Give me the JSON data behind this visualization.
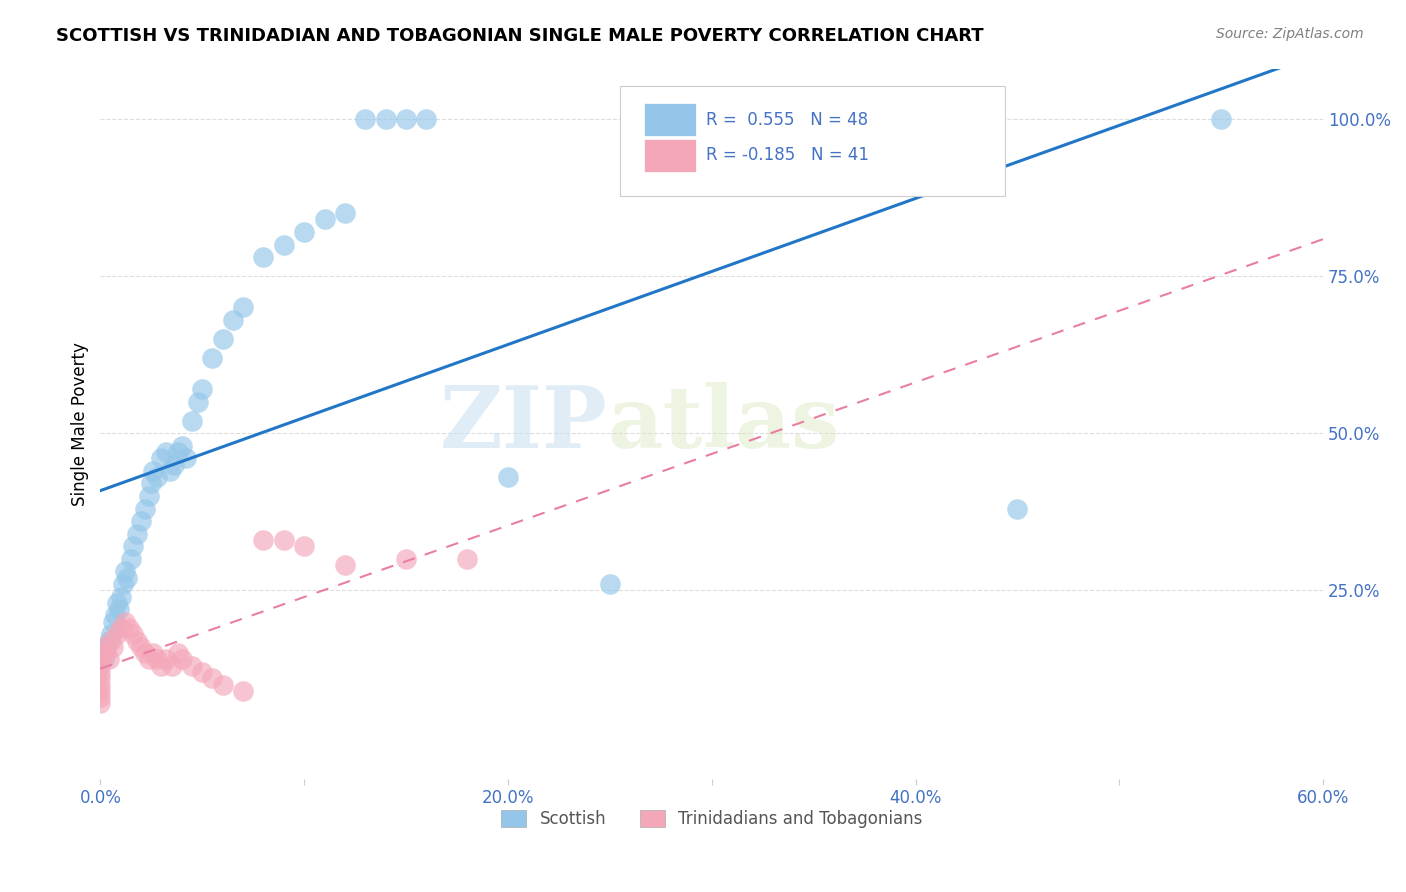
{
  "title": "SCOTTISH VS TRINIDADIAN AND TOBAGONIAN SINGLE MALE POVERTY CORRELATION CHART",
  "source": "Source: ZipAtlas.com",
  "ylabel_label": "Single Male Poverty",
  "watermark_zip": "ZIP",
  "watermark_atlas": "atlas",
  "legend_labels": [
    "Scottish",
    "Trinidadians and Tobagonians"
  ],
  "R_scottish": 0.555,
  "N_scottish": 48,
  "R_trinidad": -0.185,
  "N_trinidad": 41,
  "scottish_color": "#93c6e8",
  "trinidad_color": "#f4a7b9",
  "trendline_scottish_color": "#2176c7",
  "trendline_trinidad_color": "#e87fa0",
  "scottish_x": [
    0.002,
    0.003,
    0.004,
    0.005,
    0.006,
    0.007,
    0.008,
    0.009,
    0.01,
    0.011,
    0.012,
    0.013,
    0.015,
    0.016,
    0.018,
    0.02,
    0.022,
    0.024,
    0.025,
    0.026,
    0.028,
    0.03,
    0.032,
    0.034,
    0.036,
    0.038,
    0.04,
    0.042,
    0.045,
    0.048,
    0.05,
    0.055,
    0.06,
    0.065,
    0.07,
    0.08,
    0.09,
    0.1,
    0.11,
    0.12,
    0.13,
    0.14,
    0.15,
    0.16,
    0.2,
    0.25,
    0.45,
    0.55
  ],
  "scottish_y": [
    0.14,
    0.16,
    0.17,
    0.18,
    0.2,
    0.21,
    0.23,
    0.22,
    0.24,
    0.26,
    0.28,
    0.27,
    0.3,
    0.32,
    0.34,
    0.36,
    0.38,
    0.4,
    0.42,
    0.44,
    0.43,
    0.46,
    0.47,
    0.44,
    0.45,
    0.47,
    0.48,
    0.46,
    0.52,
    0.55,
    0.57,
    0.62,
    0.65,
    0.68,
    0.7,
    0.78,
    0.8,
    0.82,
    0.84,
    0.85,
    1.0,
    1.0,
    1.0,
    1.0,
    0.43,
    0.26,
    0.38,
    1.0
  ],
  "trinidad_x": [
    0.0,
    0.0,
    0.0,
    0.0,
    0.0,
    0.0,
    0.0,
    0.0,
    0.001,
    0.002,
    0.003,
    0.004,
    0.005,
    0.006,
    0.008,
    0.01,
    0.012,
    0.014,
    0.016,
    0.018,
    0.02,
    0.022,
    0.024,
    0.026,
    0.028,
    0.03,
    0.032,
    0.035,
    0.038,
    0.04,
    0.045,
    0.05,
    0.055,
    0.06,
    0.07,
    0.08,
    0.09,
    0.1,
    0.12,
    0.15,
    0.18
  ],
  "trinidad_y": [
    0.14,
    0.13,
    0.12,
    0.11,
    0.1,
    0.09,
    0.08,
    0.07,
    0.15,
    0.16,
    0.15,
    0.14,
    0.17,
    0.16,
    0.18,
    0.19,
    0.2,
    0.19,
    0.18,
    0.17,
    0.16,
    0.15,
    0.14,
    0.15,
    0.14,
    0.13,
    0.14,
    0.13,
    0.15,
    0.14,
    0.13,
    0.12,
    0.11,
    0.1,
    0.09,
    0.33,
    0.33,
    0.32,
    0.29,
    0.3,
    0.3
  ],
  "xticks": [
    0.0,
    0.1,
    0.2,
    0.3,
    0.4,
    0.5,
    0.6
  ],
  "xtick_labels": [
    "0.0%",
    "",
    "20.0%",
    "",
    "40.0%",
    "",
    "60.0%"
  ],
  "yticks_right": [
    0.25,
    0.5,
    0.75,
    1.0
  ],
  "ytick_labels_right": [
    "25.0%",
    "50.0%",
    "75.0%",
    "100.0%"
  ],
  "xlim": [
    0.0,
    0.6
  ],
  "ylim": [
    -0.05,
    1.08
  ]
}
